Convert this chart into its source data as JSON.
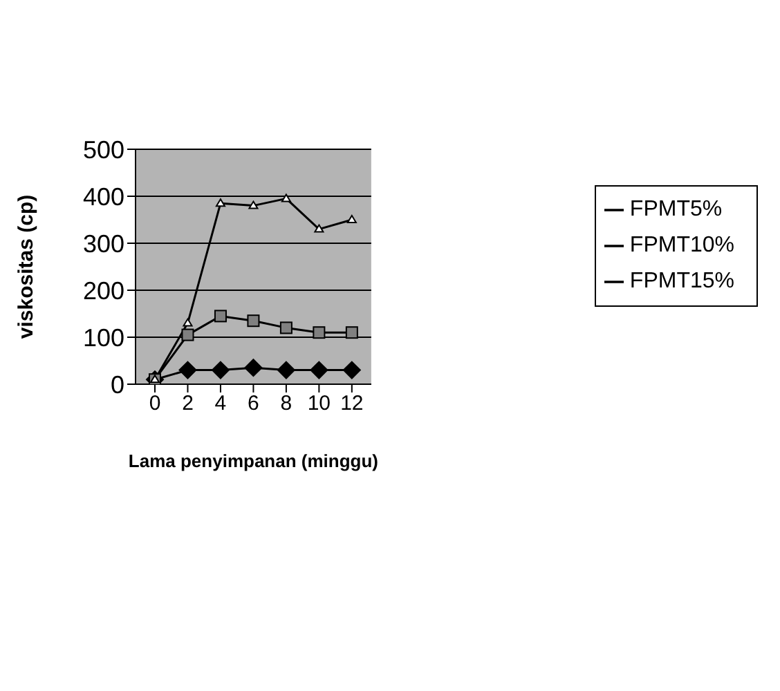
{
  "chart_data": {
    "type": "line",
    "xlabel": "Lama penyimpanan (minggu)",
    "ylabel": "viskositas (cp)",
    "categories": [
      "0",
      "2",
      "4",
      "6",
      "8",
      "10",
      "12"
    ],
    "series": [
      {
        "name": "FPMT5%",
        "color": "#000000",
        "marker": "diamond",
        "values": [
          10,
          30,
          30,
          35,
          30,
          30,
          30
        ]
      },
      {
        "name": "FPMT10%",
        "color": "#000000",
        "marker": "square",
        "values": [
          10,
          105,
          145,
          135,
          120,
          110,
          110
        ]
      },
      {
        "name": "FPMT15%",
        "color": "#000000",
        "marker": "triangle",
        "values": [
          10,
          130,
          385,
          380,
          395,
          330,
          350
        ]
      }
    ],
    "ylim": [
      0,
      500
    ],
    "yticks": [
      0,
      100,
      200,
      300,
      400,
      500
    ],
    "grid": "y",
    "legend": "right"
  }
}
